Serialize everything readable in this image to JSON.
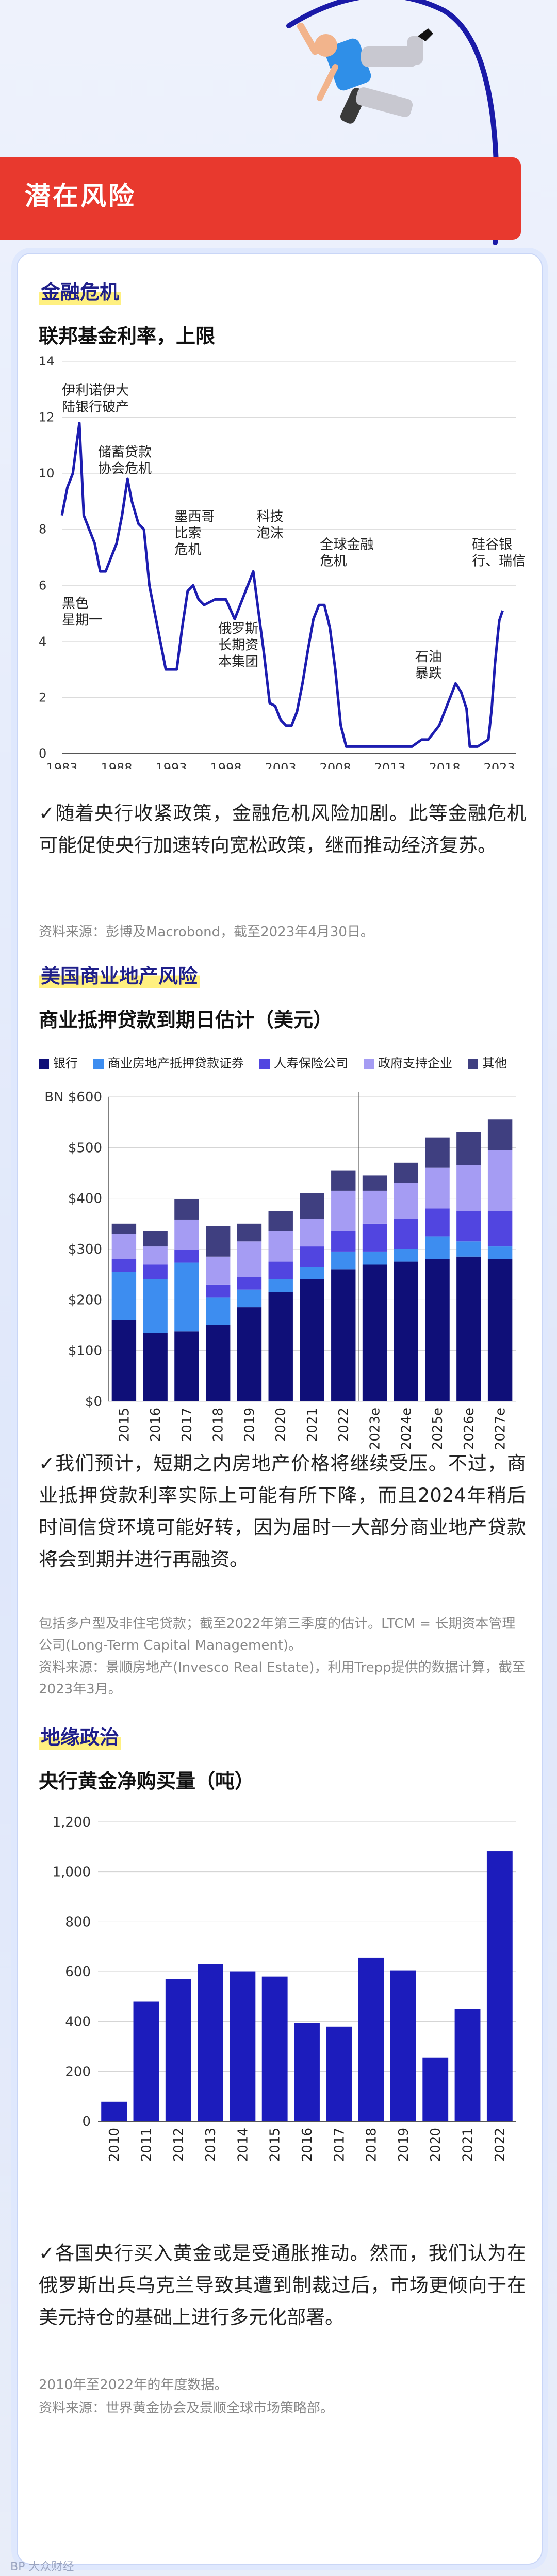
{
  "header": {
    "title": "潜在风险"
  },
  "section1": {
    "tag": "金融危机",
    "chart_title": "联邦基金利率，上限",
    "paragraph": "✓随着央行收紧政策，金融危机风险加剧。此等金融危机可能促使央行加速转向宽松政策，继而推动经济复苏。",
    "source": "资料来源：彭博及Macrobond，截至2023年4月30日。"
  },
  "section2": {
    "tag": "美国商业地产风险",
    "chart_title": "商业抵押贷款到期日估计（美元）",
    "paragraph": "✓我们预计，短期之内房地产价格将继续受压。不过，商业抵押贷款利率实际上可能有所下降，而且2024年稍后时间信贷环境可能好转，因为届时一大部分商业地产贷款将会到期并进行再融资。",
    "note1": "包括多户型及非住宅贷款；截至2022年第三季度的估计。LTCM = 长期资本管理公司(Long-Term Capital Management)。",
    "note2": "资料来源：景顺房地产(Invesco Real Estate)，利用Trepp提供的数据计算，截至2023年3月。"
  },
  "section3": {
    "tag": "地缘政治",
    "chart_title": "央行黄金净购买量（吨）",
    "paragraph": "✓各国央行买入黄金或是受通胀推动。然而，我们认为在俄罗斯出兵乌克兰导致其遭到制裁过后，市场更倾向于在美元持仓的基础上进行多元化部署。",
    "note1": "2010年至2022年的年度数据。",
    "note2": "资料来源：世界黄金协会及景顺全球市场策略部。"
  },
  "watermark": "BP 大众财经",
  "colors": {
    "accent": "#e8392e",
    "navy": "#111184",
    "line": "#1d1db0"
  },
  "chart_data": [
    {
      "type": "line",
      "title": "联邦基金利率，上限",
      "ylim": [
        0,
        14
      ],
      "y_ticks": [
        "0",
        "2",
        "4",
        "6",
        "8",
        "10",
        "12",
        "14"
      ],
      "x_ticks": [
        "1983",
        "1988",
        "1993",
        "1998",
        "2003",
        "2008",
        "2013",
        "2018",
        "2023"
      ],
      "x": [
        1983,
        1983.5,
        1984,
        1984.6,
        1985,
        1985.5,
        1986,
        1986.5,
        1987,
        1987.5,
        1988,
        1988.5,
        1989,
        1989.4,
        1990,
        1990.5,
        1991,
        1991.5,
        1992,
        1992.5,
        1993,
        1993.5,
        1994,
        1994.5,
        1995,
        1995.5,
        1996,
        1997,
        1998,
        1998.8,
        1999,
        1999.5,
        2000,
        2000.5,
        2001,
        2001.5,
        2002,
        2002.5,
        2003,
        2003.5,
        2004,
        2004.5,
        2005,
        2005.5,
        2006,
        2006.5,
        2007,
        2007.5,
        2008,
        2008.5,
        2009,
        2012,
        2015,
        2015.9,
        2016.5,
        2017,
        2017.5,
        2018,
        2018.5,
        2019,
        2019.5,
        2020,
        2020.3,
        2021,
        2022,
        2022.3,
        2022.6,
        2022.9,
        2023,
        2023.3
      ],
      "y": [
        8.5,
        9.5,
        10,
        11.8,
        8.5,
        8,
        7.5,
        6.5,
        6.5,
        7,
        7.5,
        8.5,
        9.8,
        9,
        8.2,
        8,
        6,
        5,
        4,
        3,
        3,
        3,
        4.5,
        5.8,
        6,
        5.5,
        5.3,
        5.5,
        5.5,
        4.8,
        5,
        5.5,
        6,
        6.5,
        5,
        3.5,
        1.8,
        1.7,
        1.2,
        1,
        1,
        1.5,
        2.5,
        3.7,
        4.8,
        5.3,
        5.3,
        4.5,
        3,
        1,
        0.25,
        0.25,
        0.25,
        0.5,
        0.5,
        0.75,
        1,
        1.5,
        2,
        2.5,
        2.2,
        1.6,
        0.25,
        0.25,
        0.5,
        1.6,
        3.2,
        4.4,
        4.75,
        5.1
      ],
      "annotations": [
        "伊利诺伊大陆银行破产",
        "储蓄贷款协会危机",
        "黑色星期一",
        "墨西哥比索危机",
        "俄罗斯长期资本集团",
        "科技泡沫",
        "全球金融危机",
        "石油暴跌",
        "硅谷银行、瑞信"
      ]
    },
    {
      "type": "bar",
      "stacked": true,
      "title": "商业抵押贷款到期日估计（美元）",
      "categories": [
        "2015",
        "2016",
        "2017",
        "2018",
        "2019",
        "2020",
        "2021",
        "2022",
        "2023e",
        "2024e",
        "2025e",
        "2026e",
        "2027e"
      ],
      "ylim": [
        0,
        600
      ],
      "y_ticks": [
        "$0",
        "$100",
        "$200",
        "$300",
        "$400",
        "$500",
        "BN $600"
      ],
      "series": [
        {
          "name": "银行",
          "color": "#0f0f78",
          "values": [
            160,
            135,
            138,
            150,
            185,
            215,
            240,
            260,
            270,
            275,
            280,
            285,
            280
          ]
        },
        {
          "name": "商业房地产抵押贷款证券",
          "color": "#3d8df0",
          "values": [
            95,
            105,
            135,
            55,
            35,
            25,
            25,
            35,
            25,
            25,
            45,
            30,
            25
          ]
        },
        {
          "name": "人寿保险公司",
          "color": "#5145e0",
          "values": [
            25,
            30,
            25,
            25,
            25,
            35,
            40,
            40,
            55,
            60,
            55,
            60,
            70
          ]
        },
        {
          "name": "政府支持企业",
          "color": "#a59cf3",
          "values": [
            50,
            35,
            60,
            55,
            70,
            60,
            55,
            80,
            65,
            70,
            80,
            90,
            120
          ]
        },
        {
          "name": "其他",
          "color": "#3f3f80",
          "values": [
            20,
            30,
            40,
            60,
            35,
            40,
            50,
            40,
            30,
            40,
            60,
            65,
            60
          ]
        }
      ]
    },
    {
      "type": "bar",
      "title": "央行黄金净购买量（吨）",
      "categories": [
        "2010",
        "2011",
        "2012",
        "2013",
        "2014",
        "2015",
        "2016",
        "2017",
        "2018",
        "2019",
        "2020",
        "2021",
        "2022"
      ],
      "values": [
        79,
        481,
        569,
        629,
        601,
        580,
        395,
        379,
        656,
        605,
        255,
        450,
        1082
      ],
      "ylim": [
        0,
        1200
      ],
      "y_ticks": [
        "0",
        "200",
        "400",
        "600",
        "800",
        "1,000",
        "1,200"
      ]
    }
  ]
}
